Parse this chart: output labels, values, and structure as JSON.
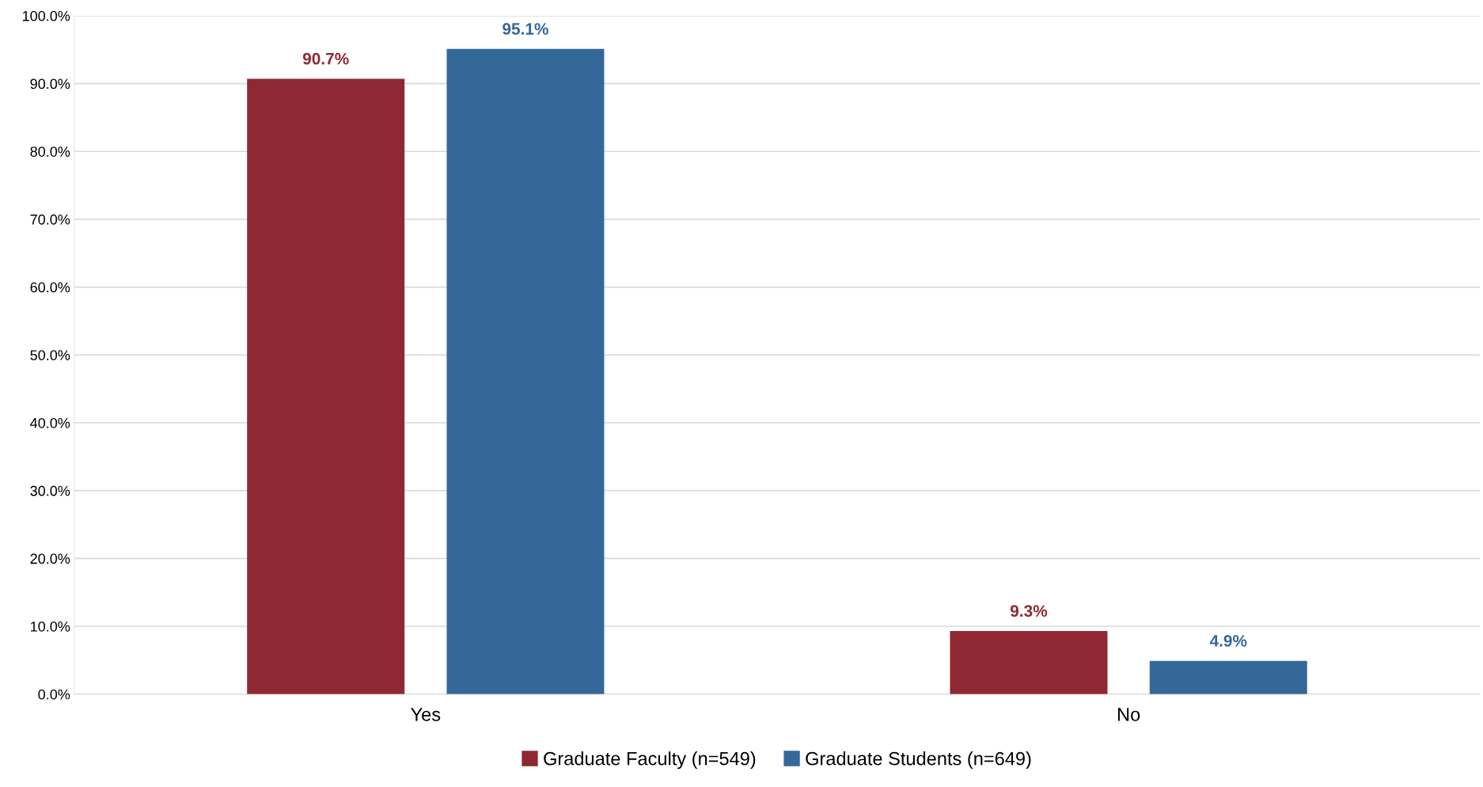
{
  "chart_data": {
    "type": "bar",
    "categories": [
      "Yes",
      "No"
    ],
    "series": [
      {
        "name": "Graduate Faculty (n=549)",
        "color": "#8f2833",
        "values": [
          90.7,
          9.3
        ],
        "value_labels": [
          "90.7%",
          "9.3%"
        ]
      },
      {
        "name": "Graduate Students (n=649)",
        "color": "#336899",
        "values": [
          95.1,
          4.9
        ],
        "value_labels": [
          "95.1%",
          "4.9%"
        ]
      }
    ],
    "ylim": [
      0,
      100
    ],
    "yticks": [
      {
        "value": 0,
        "label": "0.0%"
      },
      {
        "value": 10,
        "label": "10.0%"
      },
      {
        "value": 20,
        "label": "20.0%"
      },
      {
        "value": 30,
        "label": "30.0%"
      },
      {
        "value": 40,
        "label": "40.0%"
      },
      {
        "value": 50,
        "label": "50.0%"
      },
      {
        "value": 60,
        "label": "60.0%"
      },
      {
        "value": 70,
        "label": "70.0%"
      },
      {
        "value": 80,
        "label": "80.0%"
      },
      {
        "value": 90,
        "label": "90.0%"
      },
      {
        "value": 100,
        "label": "100.0%"
      }
    ],
    "grid": "y",
    "legend": "bottom"
  }
}
